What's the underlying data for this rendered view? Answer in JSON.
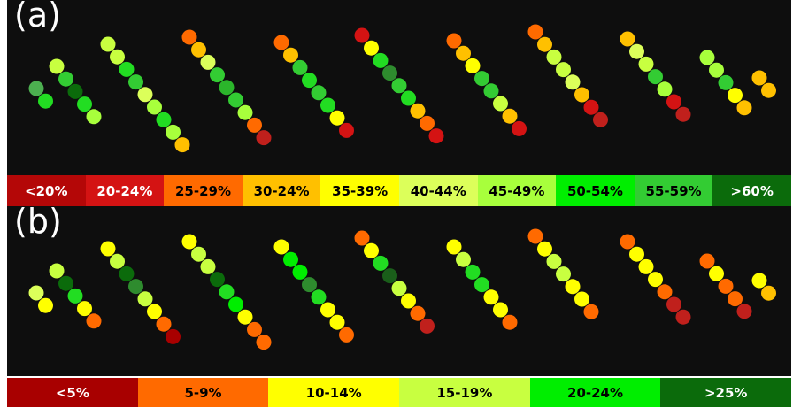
{
  "panel_a": {
    "label": "(a)",
    "legend": [
      {
        "text": "<20%",
        "bg": "#b40707",
        "fg": "#ffffff"
      },
      {
        "text": "20-24%",
        "bg": "#d41313",
        "fg": "#ffffff"
      },
      {
        "text": "25-29%",
        "bg": "#ff6a00",
        "fg": "#000000"
      },
      {
        "text": "30-24%",
        "bg": "#ffc000",
        "fg": "#000000"
      },
      {
        "text": "35-39%",
        "bg": "#ffff00",
        "fg": "#000000"
      },
      {
        "text": "40-44%",
        "bg": "#dcff5a",
        "fg": "#000000"
      },
      {
        "text": "45-49%",
        "bg": "#a8ff3c",
        "fg": "#000000"
      },
      {
        "text": "50-54%",
        "bg": "#00ee00",
        "fg": "#000000"
      },
      {
        "text": "55-59%",
        "bg": "#33cc33",
        "fg": "#000000"
      },
      {
        "text": ">60%",
        "bg": "#0b6b0b",
        "fg": "#ffffff"
      }
    ],
    "strips": [
      [
        "#4caf50",
        "#22dd22"
      ],
      [
        "#c8ff40",
        "#33cc33",
        "#0b6b0b",
        "#22dd22",
        "#a8ff3c"
      ],
      [
        "#c8ff40",
        "#c8ff40",
        "#22dd22",
        "#33cc33",
        "#dcff5a",
        "#a8ff3c",
        "#22dd22",
        "#a8ff3c",
        "#ffc000"
      ],
      [
        "#ff6a00",
        "#ffc000",
        "#dcff5a",
        "#33cc33",
        "#2bb52b",
        "#33cc33",
        "#a8ff3c",
        "#ff6a00",
        "#c0201c"
      ],
      [
        "#ff6a00",
        "#ffc000",
        "#33cc33",
        "#22dd22",
        "#33cc33",
        "#22dd22",
        "#ffff00",
        "#d41313"
      ],
      [
        "#d41313",
        "#ffff00",
        "#22dd22",
        "#2e8b2e",
        "#33cc33",
        "#22dd22",
        "#ffc000",
        "#ff6a00",
        "#d41313"
      ],
      [
        "#ff6a00",
        "#ffc000",
        "#ffff00",
        "#33cc33",
        "#33cc33",
        "#c8ff40",
        "#ffc000",
        "#d41313"
      ],
      [
        "#ff6a00",
        "#ffc000",
        "#c8ff40",
        "#c8ff40",
        "#dcff5a",
        "#ffc000",
        "#d41313",
        "#c0201c"
      ],
      [
        "#ffc000",
        "#dcff5a",
        "#c8ff40",
        "#33cc33",
        "#a8ff3c",
        "#d41313",
        "#c0201c"
      ],
      [
        "#a8ff3c",
        "#a8ff3c",
        "#33cc33",
        "#ffff00",
        "#ffc000"
      ],
      [
        "#ffc000",
        "#ffc000"
      ]
    ]
  },
  "panel_b": {
    "label": "(b)",
    "legend": [
      {
        "text": "<5%",
        "bg": "#a80000",
        "fg": "#ffffff"
      },
      {
        "text": "5-9%",
        "bg": "#ff6a00",
        "fg": "#000000"
      },
      {
        "text": "10-14%",
        "bg": "#ffff00",
        "fg": "#000000"
      },
      {
        "text": "15-19%",
        "bg": "#c8ff40",
        "fg": "#000000"
      },
      {
        "text": "20-24%",
        "bg": "#00ee00",
        "fg": "#000000"
      },
      {
        "text": ">25%",
        "bg": "#0b6b0b",
        "fg": "#ffffff"
      }
    ],
    "strips": [
      [
        "#dcff5a",
        "#ffff00"
      ],
      [
        "#c8ff40",
        "#0b6b0b",
        "#22dd22",
        "#ffff00",
        "#ff6a00"
      ],
      [
        "#ffff00",
        "#c8ff40",
        "#0b6b0b",
        "#2e8b2e",
        "#c8ff40",
        "#ffff00",
        "#ff6a00",
        "#a80000"
      ],
      [
        "#ffff00",
        "#c8ff40",
        "#c8ff40",
        "#0b6b0b",
        "#22dd22",
        "#00ee00",
        "#ffff00",
        "#ff6a00",
        "#ff6a00"
      ],
      [
        "#ffff00",
        "#00ee00",
        "#00ee00",
        "#2e8b2e",
        "#22dd22",
        "#ffff00",
        "#ffff00",
        "#ff6a00"
      ],
      [
        "#ff6a00",
        "#ffff00",
        "#22dd22",
        "#1a5e1a",
        "#c8ff40",
        "#ffff00",
        "#ff6a00",
        "#c0201c"
      ],
      [
        "#ffff00",
        "#c8ff40",
        "#22dd22",
        "#22dd22",
        "#ffff00",
        "#ffff00",
        "#ff6a00"
      ],
      [
        "#ff6a00",
        "#ffff00",
        "#c8ff40",
        "#c8ff40",
        "#ffff00",
        "#ffff00",
        "#ff6a00"
      ],
      [
        "#ff6a00",
        "#ffff00",
        "#ffff00",
        "#ffff00",
        "#ff6a00",
        "#c0201c",
        "#c0201c"
      ],
      [
        "#ff6a00",
        "#ffff00",
        "#ff6a00",
        "#ff6a00",
        "#c0201c"
      ],
      [
        "#ffff00",
        "#ffc000"
      ]
    ]
  }
}
